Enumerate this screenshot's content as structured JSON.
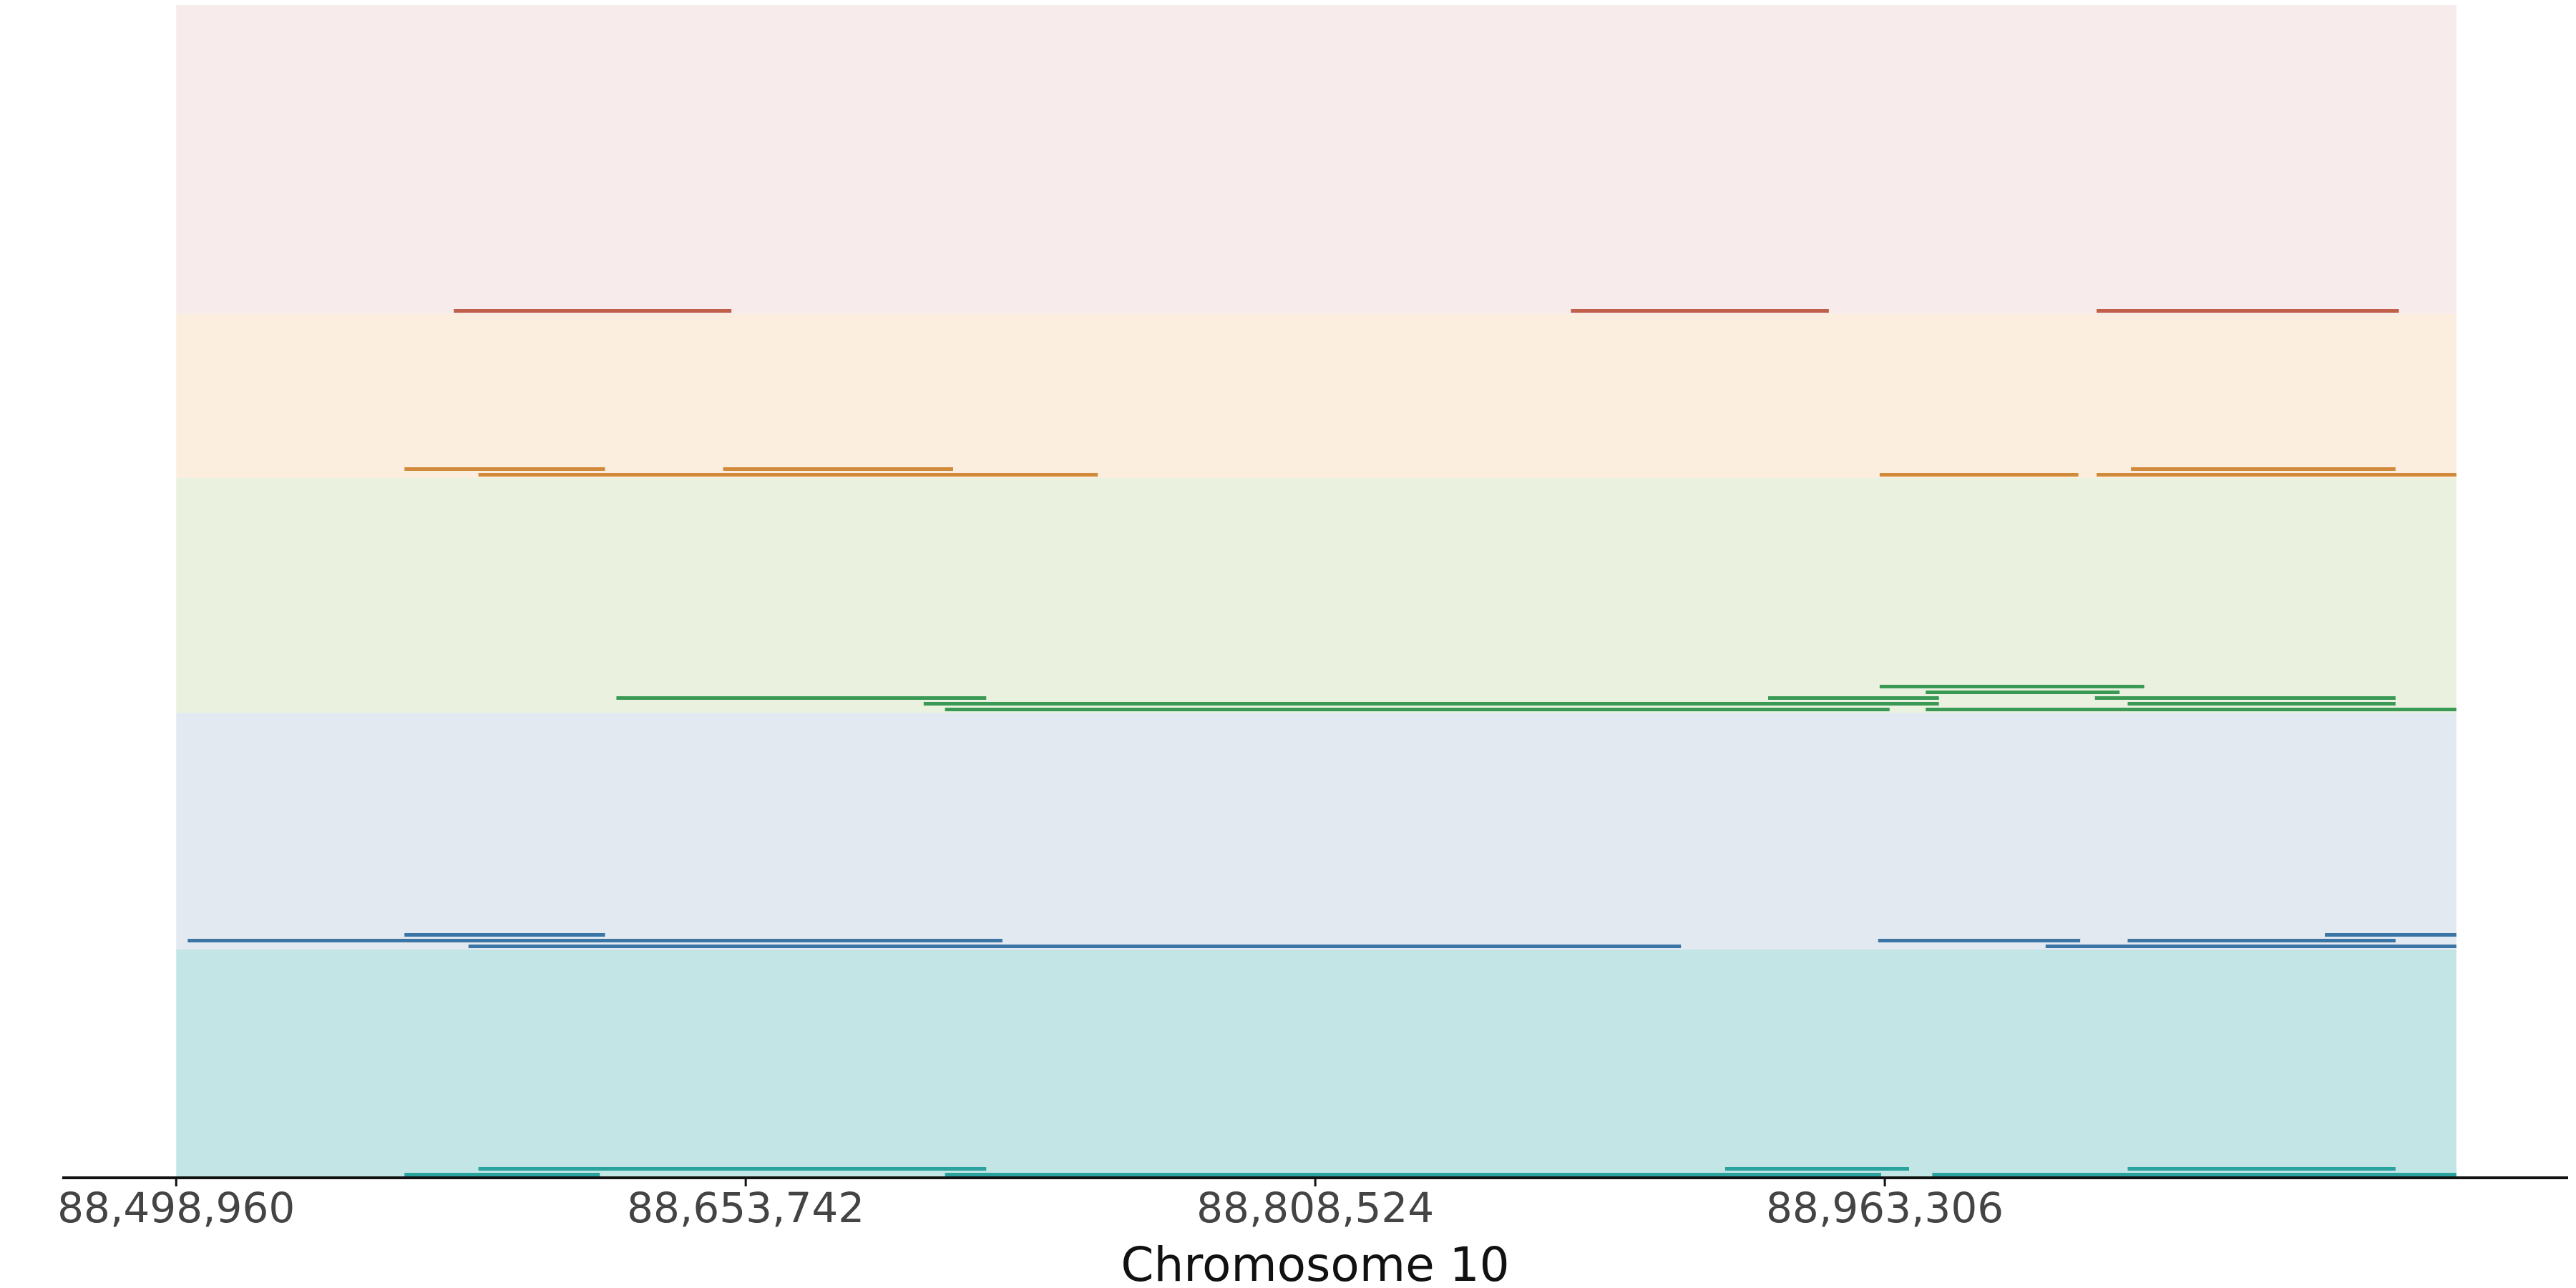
{
  "chart_data": {
    "type": "track",
    "xlabel": "Chromosome 10",
    "xlim": [
      88468000,
      89149000
    ],
    "xticks": [
      {
        "value": 88498960,
        "label": "88,498,960"
      },
      {
        "value": 88653742,
        "label": "88,653,742"
      },
      {
        "value": 88808524,
        "label": "88,808,524"
      },
      {
        "value": 88963306,
        "label": "88,963,306"
      }
    ],
    "region": [
      88498960,
      89118630
    ],
    "tracks": [
      {
        "background": "#f7ebeb",
        "color": "#c0604a",
        "segments": [
          [
            88574410,
            88649860
          ],
          [
            88878000,
            88948100
          ],
          [
            89020850,
            89103000
          ]
        ]
      },
      {
        "background": "#fbeede",
        "color": "#d08a3a",
        "segments": [
          [
            88581100,
            88749400
          ],
          [
            88647600,
            88710100
          ],
          [
            88561000,
            88615500
          ],
          [
            89020850,
            89118630
          ],
          [
            89030200,
            89102100
          ],
          [
            88961900,
            89015900
          ]
        ]
      },
      {
        "background": "#eaf1df",
        "color": "#3a9a55",
        "segments": [
          [
            88707900,
            88964600
          ],
          [
            88702100,
            88978000
          ],
          [
            89029300,
            89118630
          ],
          [
            88974400,
            89029300
          ],
          [
            88931600,
            88978000
          ],
          [
            88618600,
            88719100
          ],
          [
            89029300,
            89102100
          ],
          [
            89020400,
            89102100
          ],
          [
            88974400,
            89027100
          ],
          [
            88961900,
            89033800
          ]
        ]
      },
      {
        "background": "#e2e9f1",
        "color": "#3a75a5",
        "segments": [
          [
            88723500,
            88907900
          ],
          [
            88578400,
            88723500
          ],
          [
            88502100,
            88723500
          ],
          [
            89007000,
            89118630
          ],
          [
            89029300,
            89102100
          ],
          [
            88561000,
            88615500
          ],
          [
            88961500,
            89016400
          ],
          [
            89082900,
            89118630
          ]
        ]
      },
      {
        "background": "#c4e5e6",
        "color": "#2aa39e",
        "segments": [
          [
            88910100,
            88962300
          ],
          [
            88707900,
            88910100
          ],
          [
            88581100,
            88719100
          ],
          [
            88976200,
            89118630
          ],
          [
            89029300,
            89102100
          ],
          [
            88561000,
            88614100
          ],
          [
            88919900,
            88969900
          ]
        ]
      }
    ]
  }
}
